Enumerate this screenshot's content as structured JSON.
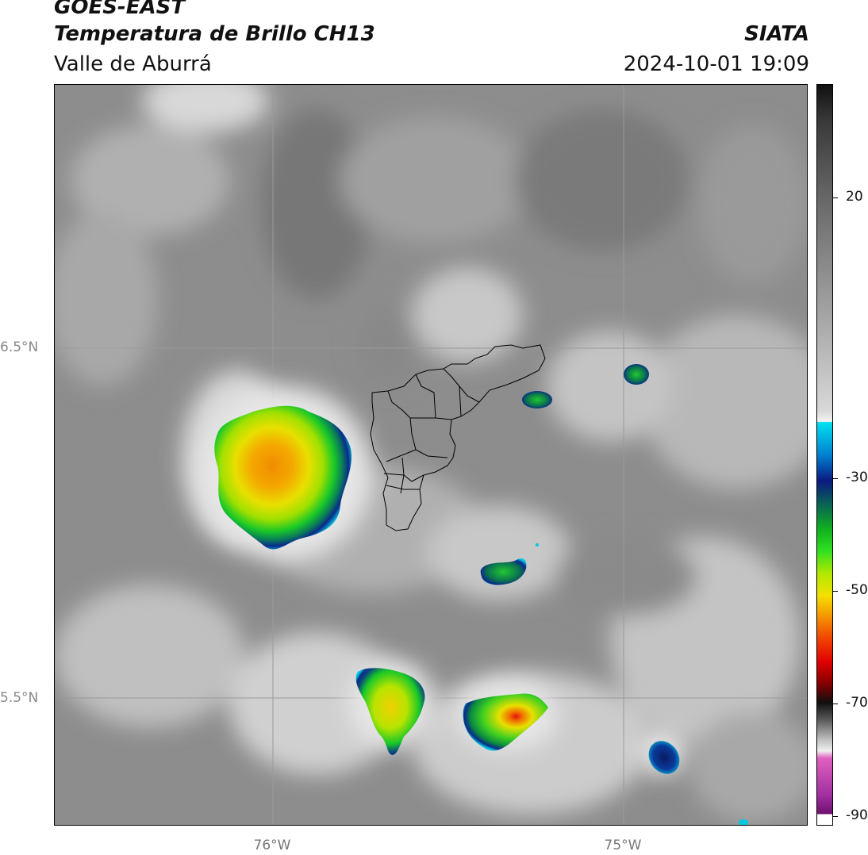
{
  "header": {
    "satellite": "GOES-EAST",
    "product": "Temperatura de Brillo CH13",
    "region": "Valle de Aburrá",
    "organization": "SIATA",
    "datetime": "2024-10-01 19:09"
  },
  "map": {
    "lat_labels": [
      "6.5°N",
      "5.5°N"
    ],
    "lon_labels": [
      "76°W",
      "75°W"
    ],
    "background_color": "#8d8d8d",
    "gridline_color": "#999999"
  },
  "colorbar": {
    "tick_labels": [
      "20",
      "-30",
      "-50",
      "-70",
      "-90"
    ],
    "colors": {
      "cyan": "#00d8e8",
      "blue": "#0a2a8a",
      "green": "#10c020",
      "yellow": "#f2e400",
      "orange": "#f49000",
      "red": "#e81010",
      "magenta": "#e060c0"
    }
  }
}
